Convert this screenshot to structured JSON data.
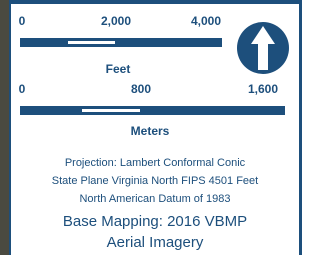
{
  "scale_bars": {
    "feet": {
      "ticks": [
        "0",
        "2,000",
        "4,000"
      ],
      "unit": "Feet"
    },
    "meters": {
      "ticks": [
        "0",
        "800",
        "1,600"
      ],
      "unit": "Meters"
    }
  },
  "notes": {
    "projection": [
      "Projection: Lambert Conformal Conic",
      "State Plane Virginia North FIPS 4501 Feet",
      "North American Datum of 1983"
    ],
    "base_mapping": [
      "Base Mapping: 2016 VBMP",
      "Aerial Imagery"
    ]
  }
}
